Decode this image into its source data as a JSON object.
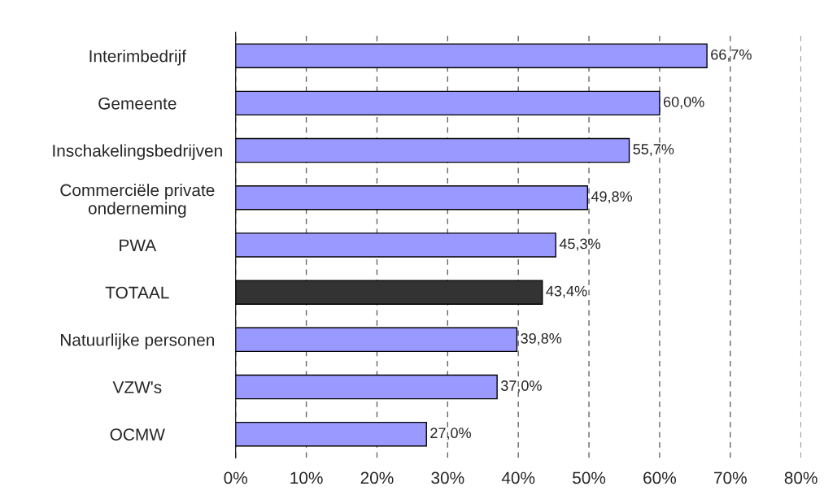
{
  "chart_data": {
    "type": "bar",
    "orientation": "horizontal",
    "categories": [
      "Interimbedrijf",
      "Gemeente",
      "Inschakelingsbedrijven",
      "Commerciële private\nonderneming",
      "PWA",
      "TOTAAL",
      "Natuurlijke personen",
      "VZW's",
      "OCMW"
    ],
    "values": [
      66.7,
      60.0,
      55.7,
      49.8,
      45.3,
      43.4,
      39.8,
      37.0,
      27.0
    ],
    "colors": [
      "#9999ff",
      "#9999ff",
      "#9999ff",
      "#9999ff",
      "#9999ff",
      "#333333",
      "#9999ff",
      "#9999ff",
      "#9999ff"
    ],
    "value_labels": [
      "66,7%",
      "60,0%",
      "55,7%",
      "49,8%",
      "45,3%",
      "43,4%",
      "39,8%",
      "37,0%",
      "27,0%"
    ],
    "xlim": [
      0,
      80
    ],
    "xticks": [
      {
        "value": 0,
        "label": "0%"
      },
      {
        "value": 10,
        "label": "10%"
      },
      {
        "value": 20,
        "label": "20%"
      },
      {
        "value": 30,
        "label": "30%"
      },
      {
        "value": 40,
        "label": "40%"
      },
      {
        "value": 50,
        "label": "50%"
      },
      {
        "value": 60,
        "label": "60%"
      },
      {
        "value": 70,
        "label": "70%"
      },
      {
        "value": 80,
        "label": "80%"
      }
    ],
    "grid": "x",
    "legend": false
  }
}
